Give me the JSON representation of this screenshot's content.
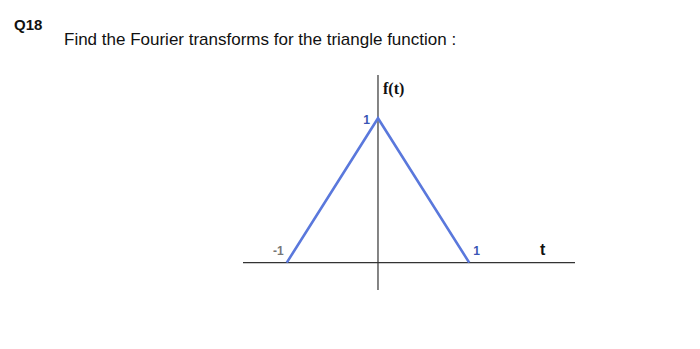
{
  "header": {
    "number": "Q18",
    "text": "Find the Fourier transforms for the triangle function :"
  },
  "chart_data": {
    "type": "line",
    "x_label": "t",
    "y_label": "f(t)",
    "x": [
      -1,
      0,
      1
    ],
    "values": [
      0,
      1,
      0
    ],
    "color": "#5a78dc",
    "xlim": [
      -1.48,
      2.16
    ],
    "xticks": [
      -1,
      1
    ],
    "ylim": [
      -0.19,
      1.3
    ],
    "yticks": [
      1
    ],
    "grid": false
  }
}
